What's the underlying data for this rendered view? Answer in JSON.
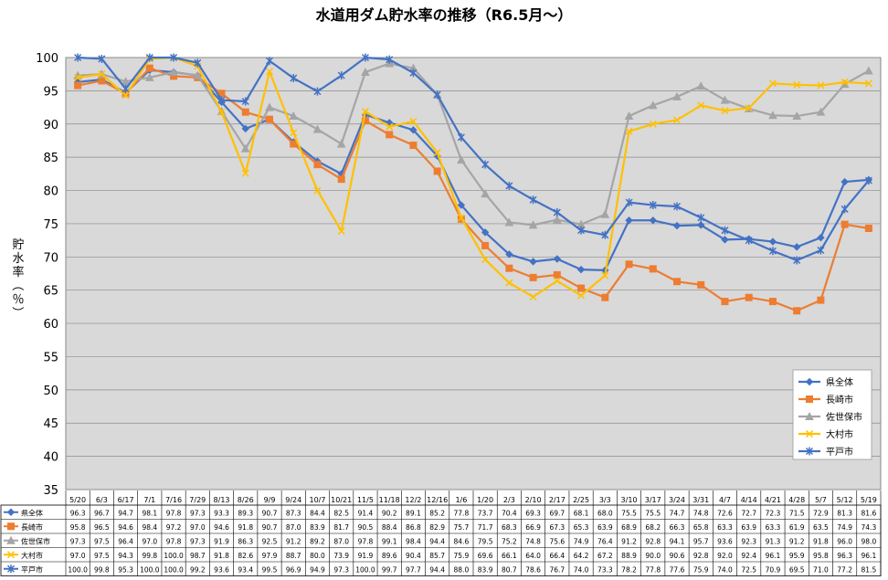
{
  "chart_data": {
    "type": "line",
    "title": "水道用ダム貯水率の推移（R6.5月～）",
    "ylabel": "貯水率（％）",
    "ylim": [
      35,
      100
    ],
    "yticks": [
      35,
      40,
      45,
      50,
      55,
      60,
      65,
      70,
      75,
      80,
      85,
      90,
      95,
      100
    ],
    "grid": true,
    "legend_position": "bottom-right",
    "categories": [
      "5/20",
      "6/3",
      "6/17",
      "7/1",
      "7/16",
      "7/29",
      "8/13",
      "8/26",
      "9/9",
      "9/24",
      "10/7",
      "10/21",
      "11/5",
      "11/18",
      "12/2",
      "12/16",
      "1/6",
      "1/20",
      "2/3",
      "2/10",
      "2/17",
      "2/25",
      "3/3",
      "3/10",
      "3/17",
      "3/24",
      "3/31",
      "4/7",
      "4/14",
      "4/21",
      "4/28",
      "5/7",
      "5/12",
      "5/19"
    ],
    "series": [
      {
        "name": "県全体",
        "color": "#4472C4",
        "marker": "diamond",
        "values": [
          96.3,
          96.7,
          94.7,
          98.1,
          97.8,
          97.3,
          93.3,
          89.3,
          90.7,
          87.3,
          84.4,
          82.5,
          91.4,
          90.2,
          89.1,
          85.2,
          77.8,
          73.7,
          70.4,
          69.3,
          69.7,
          68.1,
          68.0,
          75.5,
          75.5,
          74.7,
          74.8,
          72.6,
          72.7,
          72.3,
          71.5,
          72.9,
          81.3,
          81.6
        ]
      },
      {
        "name": "長崎市",
        "color": "#ED7D31",
        "marker": "square",
        "values": [
          95.8,
          96.5,
          94.6,
          98.4,
          97.2,
          97.0,
          94.6,
          91.8,
          90.7,
          87.0,
          83.9,
          81.7,
          90.5,
          88.4,
          86.8,
          82.9,
          75.7,
          71.7,
          68.3,
          66.9,
          67.3,
          65.3,
          63.9,
          68.9,
          68.2,
          66.3,
          65.8,
          63.3,
          63.9,
          63.3,
          61.9,
          63.5,
          74.9,
          74.3
        ]
      },
      {
        "name": "佐世保市",
        "color": "#A5A5A5",
        "marker": "triangle",
        "values": [
          97.3,
          97.5,
          96.4,
          97.0,
          97.8,
          97.3,
          91.9,
          86.3,
          92.5,
          91.2,
          89.2,
          87.0,
          97.8,
          99.1,
          98.4,
          94.4,
          84.6,
          79.5,
          75.2,
          74.8,
          75.6,
          74.9,
          76.4,
          91.2,
          92.8,
          94.1,
          95.7,
          93.6,
          92.3,
          91.3,
          91.2,
          91.8,
          96.0,
          98.0
        ]
      },
      {
        "name": "大村市",
        "color": "#FFC000",
        "marker": "x",
        "values": [
          97.0,
          97.5,
          94.3,
          99.8,
          100.0,
          98.7,
          91.8,
          82.6,
          97.9,
          88.7,
          80.0,
          73.9,
          91.9,
          89.6,
          90.4,
          85.7,
          75.9,
          69.6,
          66.1,
          64.0,
          66.4,
          64.2,
          67.2,
          88.9,
          90.0,
          90.6,
          92.8,
          92.0,
          92.4,
          96.1,
          95.9,
          95.8,
          96.3,
          96.1
        ]
      },
      {
        "name": "平戸市",
        "color": "#4472C4",
        "marker": "star",
        "values": [
          100.0,
          99.8,
          95.3,
          100.0,
          100.0,
          99.2,
          93.6,
          93.4,
          99.5,
          96.9,
          94.9,
          97.3,
          100.0,
          99.7,
          97.7,
          94.4,
          88.0,
          83.9,
          80.7,
          78.6,
          76.7,
          74.0,
          73.3,
          78.2,
          77.8,
          77.6,
          75.9,
          74.0,
          72.5,
          70.9,
          69.5,
          71.0,
          77.2,
          81.5
        ]
      }
    ]
  }
}
